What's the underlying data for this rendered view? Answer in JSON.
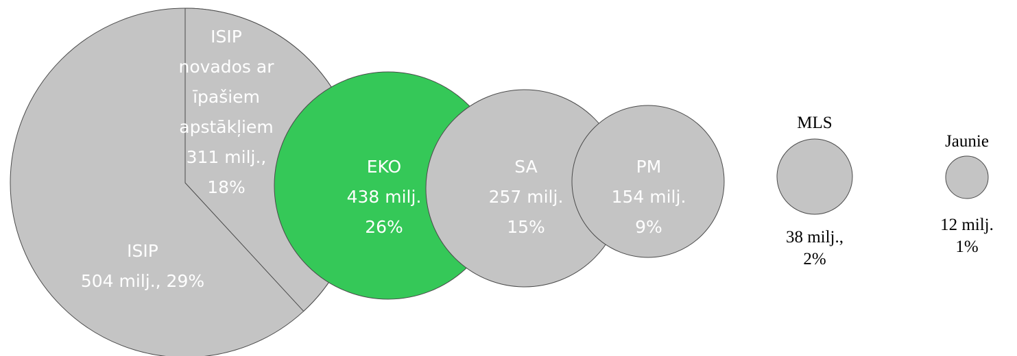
{
  "chart_data": {
    "type": "bubble",
    "title": "",
    "unit": "milj.",
    "colors": {
      "default": "#c4c4c4",
      "highlight": "#35c858",
      "stroke": "#4a4a4a",
      "text_inside": "#ffffff",
      "text_outside": "#000000"
    },
    "items": [
      {
        "id": "isip-group",
        "label": "ISIP",
        "value": 815,
        "highlighted": false,
        "slices": [
          {
            "id": "isip-main",
            "value": 504,
            "share_percent": 29,
            "label_lines": [
              "ISIP",
              "504 milj., 29%"
            ]
          },
          {
            "id": "isip-special",
            "value": 311,
            "share_percent": 18,
            "label_lines": [
              "ISIP",
              "novados ar",
              "īpašiem",
              "apstākļiem",
              "311 milj.,",
              "18%"
            ]
          }
        ]
      },
      {
        "id": "eko",
        "value": 438,
        "share_percent": 26,
        "highlighted": true,
        "label_lines": [
          "EKO",
          "438 milj.",
          "26%"
        ]
      },
      {
        "id": "sa",
        "value": 257,
        "share_percent": 15,
        "highlighted": false,
        "label_lines": [
          "SA",
          "257 milj.",
          "15%"
        ]
      },
      {
        "id": "pm",
        "value": 154,
        "share_percent": 9,
        "highlighted": false,
        "label_lines": [
          "PM",
          "154 milj.",
          "9%"
        ]
      },
      {
        "id": "mls",
        "value": 38,
        "share_percent": 2,
        "highlighted": false,
        "name": "MLS",
        "value_lines": [
          "38 milj.,",
          "2%"
        ]
      },
      {
        "id": "jaunie",
        "value": 12,
        "share_percent": 1,
        "highlighted": false,
        "name": "Jaunie",
        "value_lines": [
          "12 milj.",
          "1%"
        ]
      }
    ]
  }
}
